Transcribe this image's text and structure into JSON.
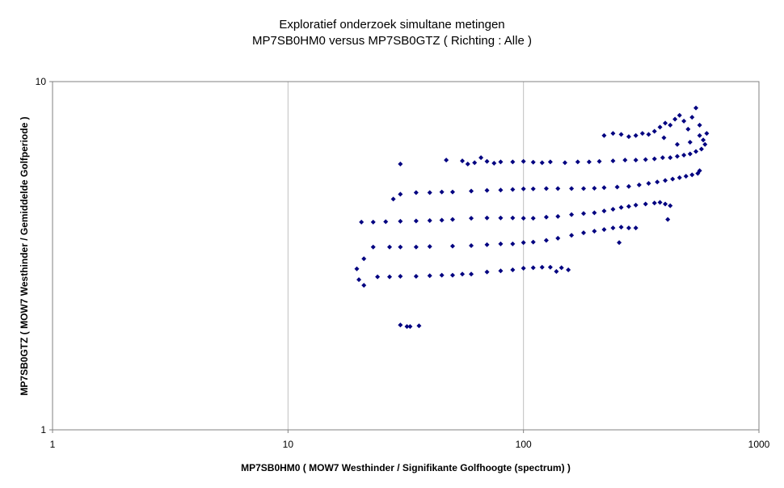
{
  "chart_data": {
    "type": "scatter",
    "title": "Exploratief onderzoek simultane metingen",
    "subtitle": "MP7SB0HM0 versus MP7SB0GTZ ( Richting : Alle )",
    "xlabel": "MP7SB0HM0 ( MOW7 Westhinder / Signifikante Golfhoogte (spectrum) )",
    "ylabel": "MP7SB0GTZ ( MOW7 Westhinder / Gemiddelde Golfperiode )",
    "x_scale": "log",
    "y_scale": "log",
    "xlim": [
      1,
      1000
    ],
    "ylim": [
      1,
      10
    ],
    "x_ticks": [
      "1",
      "10",
      "100",
      "1000"
    ],
    "y_ticks": [
      "1",
      "10"
    ],
    "grid": "vertical major gridlines",
    "legend": "none",
    "marker": "diamond",
    "colors": {
      "marker": "#000080",
      "grid": "#c0c0c0",
      "axis": "#808080"
    },
    "series": [
      {
        "values": [
          [
            20,
            2.7
          ],
          [
            21,
            2.6
          ],
          [
            24,
            2.75
          ],
          [
            27,
            2.75
          ],
          [
            30,
            2.76
          ],
          [
            35,
            2.76
          ],
          [
            40,
            2.77
          ],
          [
            45,
            2.78
          ],
          [
            50,
            2.78
          ],
          [
            55,
            2.8
          ],
          [
            60,
            2.8
          ],
          [
            70,
            2.84
          ],
          [
            80,
            2.86
          ],
          [
            90,
            2.88
          ],
          [
            100,
            2.91
          ],
          [
            110,
            2.92
          ],
          [
            120,
            2.93
          ],
          [
            130,
            2.93
          ],
          [
            138,
            2.85
          ],
          [
            145,
            2.92
          ],
          [
            155,
            2.88
          ],
          [
            30,
            2.0
          ],
          [
            32,
            1.98
          ],
          [
            33,
            1.98
          ],
          [
            36,
            1.99
          ]
        ]
      },
      {
        "values": [
          [
            19.6,
            2.9
          ],
          [
            21,
            3.1
          ],
          [
            23,
            3.35
          ],
          [
            27,
            3.35
          ],
          [
            30,
            3.35
          ],
          [
            35,
            3.35
          ],
          [
            40,
            3.36
          ],
          [
            50,
            3.37
          ],
          [
            60,
            3.38
          ],
          [
            70,
            3.4
          ],
          [
            80,
            3.42
          ],
          [
            90,
            3.42
          ],
          [
            100,
            3.45
          ],
          [
            110,
            3.46
          ],
          [
            125,
            3.5
          ],
          [
            140,
            3.55
          ],
          [
            160,
            3.62
          ],
          [
            180,
            3.68
          ],
          [
            200,
            3.72
          ],
          [
            220,
            3.76
          ],
          [
            240,
            3.8
          ],
          [
            260,
            3.82
          ],
          [
            280,
            3.8
          ],
          [
            300,
            3.8
          ],
          [
            255,
            3.45
          ]
        ]
      },
      {
        "values": [
          [
            20.5,
            3.95
          ],
          [
            23,
            3.95
          ],
          [
            26,
            3.96
          ],
          [
            30,
            3.97
          ],
          [
            35,
            3.98
          ],
          [
            40,
            3.99
          ],
          [
            45,
            4.0
          ],
          [
            50,
            4.02
          ],
          [
            60,
            4.05
          ],
          [
            70,
            4.06
          ],
          [
            80,
            4.06
          ],
          [
            90,
            4.06
          ],
          [
            100,
            4.05
          ],
          [
            110,
            4.05
          ],
          [
            125,
            4.08
          ],
          [
            140,
            4.1
          ],
          [
            160,
            4.15
          ],
          [
            180,
            4.18
          ],
          [
            200,
            4.2
          ],
          [
            220,
            4.25
          ],
          [
            240,
            4.3
          ],
          [
            260,
            4.35
          ],
          [
            280,
            4.38
          ],
          [
            300,
            4.42
          ],
          [
            330,
            4.45
          ],
          [
            360,
            4.48
          ],
          [
            380,
            4.5
          ],
          [
            400,
            4.45
          ],
          [
            420,
            4.4
          ],
          [
            410,
            4.02
          ]
        ]
      },
      {
        "values": [
          [
            28,
            4.6
          ],
          [
            30,
            4.75
          ],
          [
            35,
            4.8
          ],
          [
            40,
            4.8
          ],
          [
            45,
            4.82
          ],
          [
            50,
            4.82
          ],
          [
            60,
            4.85
          ],
          [
            70,
            4.87
          ],
          [
            80,
            4.88
          ],
          [
            90,
            4.9
          ],
          [
            100,
            4.92
          ],
          [
            110,
            4.92
          ],
          [
            125,
            4.93
          ],
          [
            140,
            4.93
          ],
          [
            160,
            4.93
          ],
          [
            180,
            4.93
          ],
          [
            200,
            4.94
          ],
          [
            220,
            4.96
          ],
          [
            250,
            4.98
          ],
          [
            280,
            5.0
          ],
          [
            310,
            5.05
          ],
          [
            340,
            5.1
          ],
          [
            370,
            5.15
          ],
          [
            400,
            5.2
          ],
          [
            430,
            5.25
          ],
          [
            460,
            5.3
          ],
          [
            490,
            5.35
          ],
          [
            520,
            5.4
          ],
          [
            550,
            5.45
          ],
          [
            560,
            5.55
          ]
        ]
      },
      {
        "values": [
          [
            30,
            5.8
          ],
          [
            47,
            5.95
          ],
          [
            55,
            5.92
          ],
          [
            58,
            5.8
          ],
          [
            62,
            5.85
          ],
          [
            66,
            6.05
          ],
          [
            70,
            5.9
          ],
          [
            75,
            5.83
          ],
          [
            80,
            5.88
          ],
          [
            90,
            5.88
          ],
          [
            100,
            5.9
          ],
          [
            110,
            5.87
          ],
          [
            120,
            5.85
          ],
          [
            130,
            5.88
          ],
          [
            150,
            5.85
          ],
          [
            170,
            5.88
          ],
          [
            190,
            5.88
          ],
          [
            210,
            5.9
          ],
          [
            240,
            5.92
          ],
          [
            270,
            5.95
          ],
          [
            300,
            5.95
          ],
          [
            330,
            5.97
          ],
          [
            360,
            6.0
          ],
          [
            390,
            6.05
          ],
          [
            420,
            6.05
          ],
          [
            450,
            6.1
          ],
          [
            480,
            6.15
          ],
          [
            510,
            6.2
          ],
          [
            540,
            6.3
          ],
          [
            570,
            6.4
          ]
        ]
      },
      {
        "values": [
          [
            220,
            7.0
          ],
          [
            240,
            7.1
          ],
          [
            260,
            7.05
          ],
          [
            280,
            6.95
          ],
          [
            300,
            7.0
          ],
          [
            320,
            7.1
          ],
          [
            340,
            7.05
          ],
          [
            360,
            7.2
          ],
          [
            380,
            7.4
          ],
          [
            400,
            7.6
          ],
          [
            420,
            7.5
          ],
          [
            440,
            7.8
          ],
          [
            460,
            8.0
          ],
          [
            480,
            7.7
          ],
          [
            500,
            7.3
          ],
          [
            520,
            7.9
          ],
          [
            540,
            8.4
          ],
          [
            560,
            7.0
          ],
          [
            580,
            6.8
          ],
          [
            600,
            7.1
          ],
          [
            395,
            6.9
          ],
          [
            450,
            6.6
          ],
          [
            510,
            6.7
          ],
          [
            560,
            7.5
          ],
          [
            590,
            6.6
          ]
        ]
      }
    ]
  }
}
